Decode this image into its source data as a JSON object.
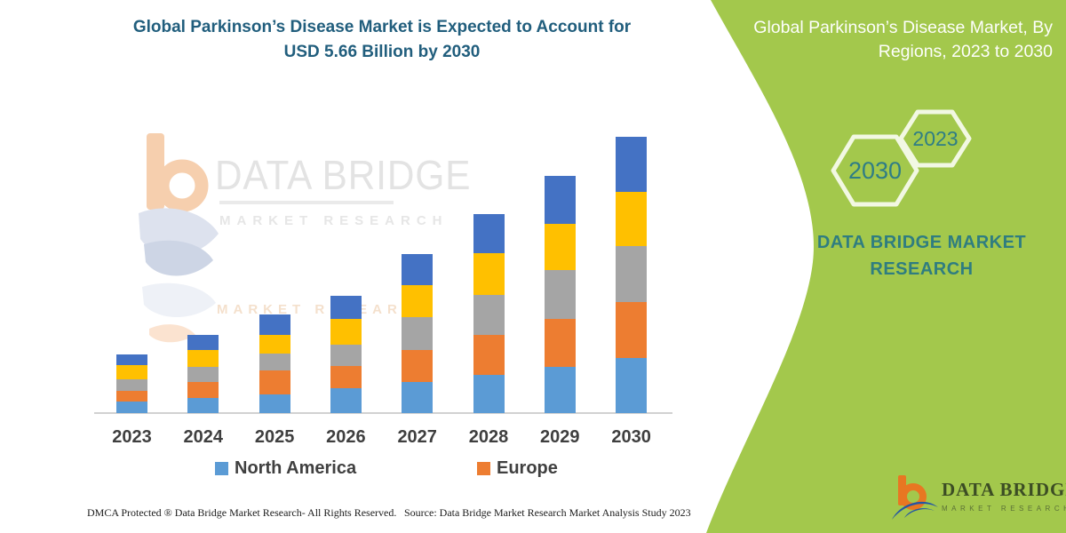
{
  "header": {
    "title_line1": "Global Parkinson’s Disease Market is Expected to Account for",
    "title_line2": "USD 5.66 Billion by 2030"
  },
  "side_panel": {
    "title_line1": "Global Parkinson’s Disease Market, By",
    "title_line2": "Regions, 2023 to 2030",
    "hexagon_front_year": "2030",
    "hexagon_back_year": "2023",
    "brand_text": "DATA BRIDGE MARKET RESEARCH",
    "panel_color": "#a3c84c",
    "hexagon_outline_color": "#f2f8e3",
    "text_teal": "#2f7d85"
  },
  "watermark": {
    "line1": "DATA BRIDGE",
    "line2": "MARKET RESEARCH",
    "ghost_line": "MARKET RESEARCH"
  },
  "chart_data": {
    "type": "bar",
    "stacked": true,
    "title": "Global Parkinson’s Disease Market is Expected to Account for USD 5.66 Billion by 2030",
    "unit": "USD Billion (values estimated from bar heights; 2030 total labeled as 5.66)",
    "categories": [
      "2023",
      "2024",
      "2025",
      "2026",
      "2027",
      "2028",
      "2029",
      "2030"
    ],
    "series": [
      {
        "name": "North America",
        "color": "#5b9bd5",
        "values": [
          0.24,
          0.31,
          0.38,
          0.51,
          0.64,
          0.78,
          0.95,
          1.13
        ]
      },
      {
        "name": "Europe",
        "color": "#ed7d31",
        "values": [
          0.22,
          0.33,
          0.49,
          0.45,
          0.66,
          0.82,
          0.98,
          1.15
        ]
      },
      {
        "name": "Unlabeled (gray)",
        "color": "#a5a5a5",
        "values": [
          0.24,
          0.31,
          0.35,
          0.45,
          0.66,
          0.82,
          1.0,
          1.15
        ]
      },
      {
        "name": "Unlabeled (yellow)",
        "color": "#ffc000",
        "values": [
          0.29,
          0.35,
          0.38,
          0.51,
          0.66,
          0.86,
          0.95,
          1.11
        ]
      },
      {
        "name": "Unlabeled (dark blue)",
        "color": "#4472c4",
        "values": [
          0.22,
          0.31,
          0.42,
          0.49,
          0.64,
          0.8,
          0.98,
          1.12
        ]
      }
    ],
    "totals_estimated": [
      1.21,
      1.61,
      2.02,
      2.41,
      3.26,
      4.08,
      4.86,
      5.66
    ],
    "xlabel": "",
    "ylabel": "",
    "y_axis_shown": false,
    "gridlines": false,
    "legend_position": "bottom",
    "legend_visible_series": [
      0,
      1
    ],
    "axis_line_color": "#d1d1d1",
    "x_label_color": "#3f3f3f"
  },
  "footer": {
    "dmca": "DMCA Protected ® Data Bridge Market Research-  All Rights Reserved.",
    "source": "Source: Data Bridge Market Research  Market Analysis Study 2023"
  },
  "logo": {
    "name_line": "DATA BRIDGE",
    "sub_line": "MARKET RESEARCH",
    "orange": "#e87722",
    "blue": "#2456a4"
  }
}
